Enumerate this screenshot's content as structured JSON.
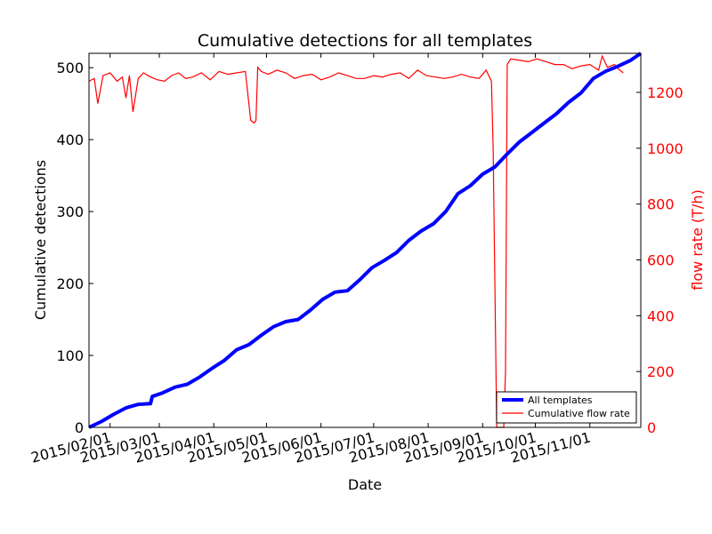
{
  "chart_data": {
    "type": "line",
    "title": "Cumulative detections for all templates",
    "xlabel": "Date",
    "ylabel": "Cumulative detections",
    "y2label": "flow rate (T/h)",
    "xlim": [
      "2015-01-20",
      "2015-11-30"
    ],
    "ylim": [
      0,
      520
    ],
    "y2lim": [
      0,
      1340
    ],
    "x_ticks": [
      {
        "date": "2015-02-01",
        "label": "2015/02/01"
      },
      {
        "date": "2015-03-01",
        "label": "2015/03/01"
      },
      {
        "date": "2015-04-01",
        "label": "2015/04/01"
      },
      {
        "date": "2015-05-01",
        "label": "2015/05/01"
      },
      {
        "date": "2015-06-01",
        "label": "2015/06/01"
      },
      {
        "date": "2015-07-01",
        "label": "2015/07/01"
      },
      {
        "date": "2015-08-01",
        "label": "2015/08/01"
      },
      {
        "date": "2015-09-01",
        "label": "2015/09/01"
      },
      {
        "date": "2015-10-01",
        "label": "2015/10/01"
      },
      {
        "date": "2015-11-01",
        "label": "2015/11/01"
      }
    ],
    "y_ticks": [
      0,
      100,
      200,
      300,
      400,
      500
    ],
    "y2_ticks": [
      0,
      200,
      400,
      600,
      800,
      1000,
      1200
    ],
    "grid": false,
    "legend_position": "lower-right",
    "colors": {
      "detections": "#0000ff",
      "flow": "#ff0000",
      "axis": "#000000",
      "y2_axis": "#ff0000"
    },
    "series": [
      {
        "name": "All templates",
        "axis": "left",
        "x": [
          "2015-01-20",
          "2015-01-27",
          "2015-02-03",
          "2015-02-10",
          "2015-02-17",
          "2015-02-24",
          "2015-02-25",
          "2015-03-03",
          "2015-03-10",
          "2015-03-17",
          "2015-03-24",
          "2015-03-31",
          "2015-04-07",
          "2015-04-14",
          "2015-04-21",
          "2015-04-28",
          "2015-05-05",
          "2015-05-12",
          "2015-05-19",
          "2015-05-26",
          "2015-06-02",
          "2015-06-09",
          "2015-06-16",
          "2015-06-23",
          "2015-06-30",
          "2015-07-07",
          "2015-07-14",
          "2015-07-21",
          "2015-07-28",
          "2015-08-04",
          "2015-08-11",
          "2015-08-18",
          "2015-08-25",
          "2015-09-01",
          "2015-09-08",
          "2015-09-15",
          "2015-09-22",
          "2015-09-29",
          "2015-10-06",
          "2015-10-13",
          "2015-10-20",
          "2015-10-27",
          "2015-11-03",
          "2015-11-10",
          "2015-11-17",
          "2015-11-24",
          "2015-11-30"
        ],
        "y": [
          0,
          8,
          18,
          27,
          32,
          33,
          43,
          48,
          56,
          60,
          70,
          82,
          93,
          108,
          115,
          128,
          140,
          147,
          150,
          163,
          178,
          188,
          190,
          205,
          222,
          232,
          243,
          260,
          273,
          283,
          300,
          325,
          336,
          352,
          362,
          380,
          397,
          410,
          423,
          436,
          452,
          465,
          485,
          495,
          502,
          510,
          520
        ]
      },
      {
        "name": "Cumulative flow rate",
        "axis": "right",
        "x": [
          "2015-01-20",
          "2015-01-23",
          "2015-01-25",
          "2015-01-28",
          "2015-02-01",
          "2015-02-05",
          "2015-02-08",
          "2015-02-10",
          "2015-02-12",
          "2015-02-14",
          "2015-02-17",
          "2015-02-20",
          "2015-02-24",
          "2015-02-28",
          "2015-03-04",
          "2015-03-08",
          "2015-03-12",
          "2015-03-16",
          "2015-03-20",
          "2015-03-25",
          "2015-03-30",
          "2015-04-04",
          "2015-04-09",
          "2015-04-14",
          "2015-04-19",
          "2015-04-22",
          "2015-04-24",
          "2015-04-25",
          "2015-04-26",
          "2015-04-28",
          "2015-05-02",
          "2015-05-07",
          "2015-05-12",
          "2015-05-17",
          "2015-05-22",
          "2015-05-27",
          "2015-06-01",
          "2015-06-06",
          "2015-06-11",
          "2015-06-16",
          "2015-06-21",
          "2015-06-26",
          "2015-07-01",
          "2015-07-06",
          "2015-07-11",
          "2015-07-16",
          "2015-07-21",
          "2015-07-26",
          "2015-07-31",
          "2015-08-05",
          "2015-08-10",
          "2015-08-15",
          "2015-08-20",
          "2015-08-25",
          "2015-08-30",
          "2015-09-03",
          "2015-09-06",
          "2015-09-07",
          "2015-09-09",
          "2015-09-13",
          "2015-09-14",
          "2015-09-15",
          "2015-09-17",
          "2015-09-22",
          "2015-09-27",
          "2015-10-02",
          "2015-10-07",
          "2015-10-12",
          "2015-10-17",
          "2015-10-22",
          "2015-10-27",
          "2015-11-01",
          "2015-11-06",
          "2015-11-08",
          "2015-11-11",
          "2015-11-15",
          "2015-11-18",
          "2015-11-20"
        ],
        "y": [
          1240,
          1250,
          1160,
          1260,
          1270,
          1240,
          1255,
          1180,
          1260,
          1130,
          1250,
          1270,
          1255,
          1245,
          1240,
          1260,
          1270,
          1250,
          1255,
          1270,
          1245,
          1275,
          1265,
          1270,
          1275,
          1100,
          1090,
          1100,
          1290,
          1275,
          1265,
          1280,
          1270,
          1250,
          1260,
          1265,
          1245,
          1255,
          1270,
          1260,
          1250,
          1250,
          1260,
          1255,
          1265,
          1270,
          1250,
          1280,
          1260,
          1255,
          1250,
          1255,
          1265,
          1255,
          1250,
          1280,
          1240,
          1000,
          0,
          0,
          200,
          1300,
          1320,
          1315,
          1310,
          1320,
          1310,
          1300,
          1300,
          1285,
          1295,
          1300,
          1280,
          1330,
          1290,
          1300,
          1280,
          1270
        ]
      }
    ]
  }
}
